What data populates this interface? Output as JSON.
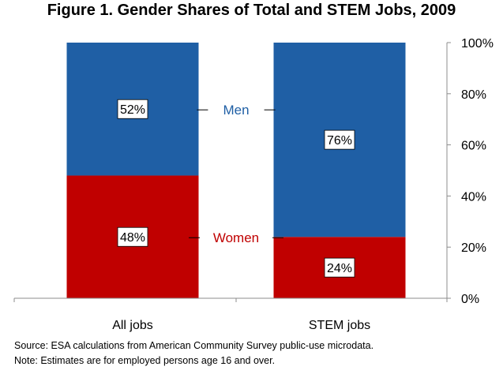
{
  "chart_data": {
    "type": "bar",
    "stacked": true,
    "title": "Figure 1. Gender Shares of Total and STEM Jobs, 2009",
    "categories": [
      "All jobs",
      "STEM jobs"
    ],
    "series": [
      {
        "name": "Women",
        "values": [
          48,
          24
        ],
        "labels": [
          "48%",
          "24%"
        ],
        "color": "#c00000"
      },
      {
        "name": "Men",
        "values": [
          52,
          76
        ],
        "labels": [
          "52%",
          "76%"
        ],
        "color": "#1f5fa5"
      }
    ],
    "yaxis": {
      "position": "right",
      "ylim": [
        0,
        100
      ],
      "ticks": [
        0,
        20,
        40,
        60,
        80,
        100
      ],
      "tick_labels": [
        "0%",
        "20%",
        "40%",
        "60%",
        "80%",
        "100%"
      ]
    },
    "grid": false,
    "legend": "inline-between-bars"
  },
  "notes": {
    "source": "Source:  ESA calculations from American Community Survey public-use microdata.",
    "note": "Note: Estimates are for employed persons age 16 and over."
  }
}
